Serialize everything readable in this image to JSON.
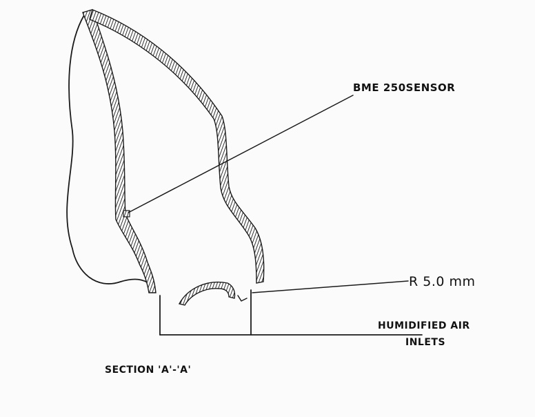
{
  "labels": {
    "sensor": "BME 250SENSOR",
    "radius": "R 5.0 mm",
    "air_line1": "HUMIDIFIED AIR",
    "air_line2": "INLETS",
    "section": "SECTION 'A'-'A'"
  }
}
